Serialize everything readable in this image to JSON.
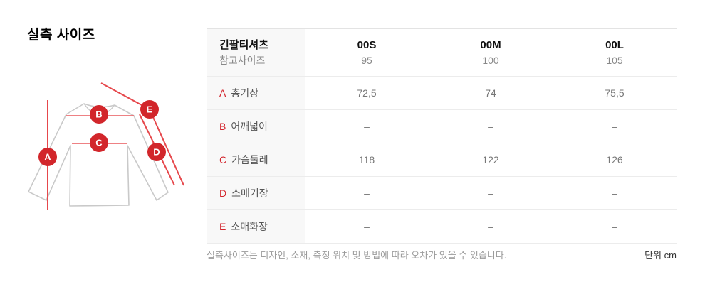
{
  "page": {
    "title": "실측 사이즈"
  },
  "diagram": {
    "badges": [
      "A",
      "B",
      "C",
      "D",
      "E"
    ],
    "badge_color": "#d2262b",
    "line_color": "#e6484c",
    "outline_color": "#c9c9c9"
  },
  "table": {
    "header": {
      "product": "긴팔티셔츠",
      "reference_label": "참고사이즈",
      "sizes": [
        "00S",
        "00M",
        "00L"
      ],
      "reference_values": [
        "95",
        "100",
        "105"
      ]
    },
    "rows": [
      {
        "key": "A",
        "label": "총기장",
        "values": [
          "72,5",
          "74",
          "75,5"
        ]
      },
      {
        "key": "B",
        "label": "어깨넓이",
        "values": [
          "–",
          "–",
          "–"
        ]
      },
      {
        "key": "C",
        "label": "가슴둘레",
        "values": [
          "118",
          "122",
          "126"
        ]
      },
      {
        "key": "D",
        "label": "소매기장",
        "values": [
          "–",
          "–",
          "–"
        ]
      },
      {
        "key": "E",
        "label": "소매화장",
        "values": [
          "–",
          "–",
          "–"
        ]
      }
    ]
  },
  "footer": {
    "note": "실측사이즈는 디자인, 소재, 측정 위치 및 방법에 따라 오차가 있을 수 있습니다.",
    "unit": "단위 cm"
  }
}
